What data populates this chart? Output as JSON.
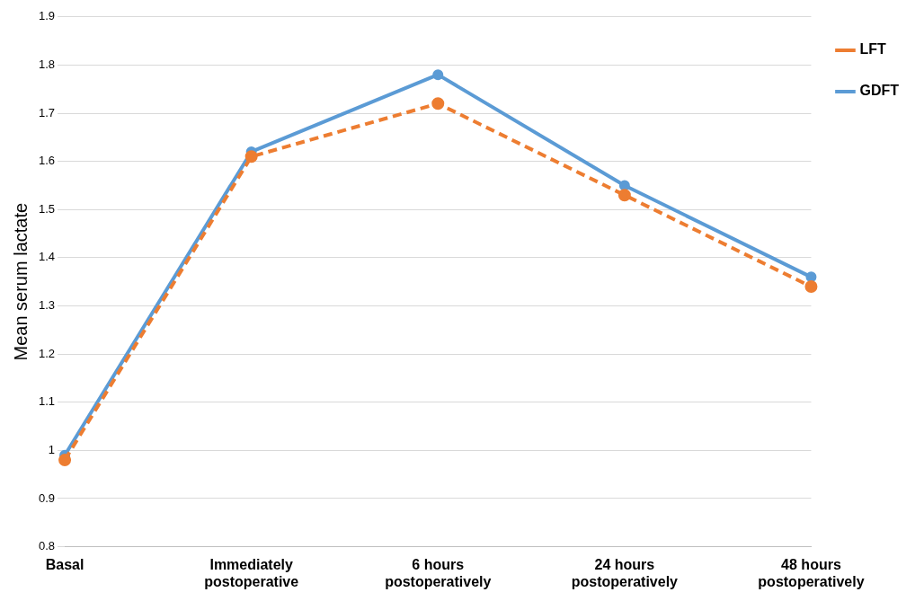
{
  "chart_data": {
    "type": "line",
    "ylabel": "Mean serum lactate",
    "categories": [
      "Basal",
      "Immediately postoperative",
      "6 hours postoperatively",
      "24 hours postoperatively",
      "48 hours postoperatively"
    ],
    "series": [
      {
        "name": "GDFT",
        "color": "#5b9bd5",
        "values": [
          0.99,
          1.62,
          1.78,
          1.55,
          1.36
        ],
        "line_style": "solid"
      },
      {
        "name": "LFT",
        "color": "#ed7d31",
        "values": [
          0.98,
          1.61,
          1.72,
          1.53,
          1.34
        ],
        "line_style": "dashed"
      }
    ],
    "ylim": [
      0.8,
      1.9
    ],
    "yticks": [
      0.8,
      0.9,
      1,
      1.1,
      1.2,
      1.3,
      1.4,
      1.5,
      1.6,
      1.7,
      1.8,
      1.9
    ],
    "grid": "y",
    "legend": "right",
    "marker": "circle"
  }
}
